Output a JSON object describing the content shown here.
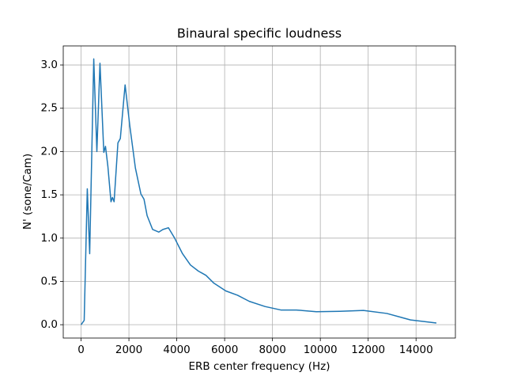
{
  "chart_data": {
    "type": "line",
    "title": "Binaural specific loudness",
    "xlabel": "ERB center frequency (Hz)",
    "ylabel": "N' (sone/Cam)",
    "x": [
      0,
      130,
      260,
      360,
      530,
      660,
      790,
      950,
      1020,
      1120,
      1250,
      1310,
      1380,
      1540,
      1640,
      1840,
      2040,
      2270,
      2500,
      2630,
      2760,
      2990,
      3250,
      3420,
      3650,
      3910,
      4240,
      4570,
      4900,
      5220,
      5550,
      6050,
      6540,
      7030,
      7690,
      8350,
      9000,
      9830,
      10810,
      11800,
      12780,
      13770,
      14850
    ],
    "series": [
      {
        "color": "#1f77b4",
        "values": [
          0,
          0.05,
          1.57,
          0.82,
          3.07,
          2.0,
          3.02,
          1.99,
          2.06,
          1.83,
          1.42,
          1.47,
          1.42,
          2.1,
          2.15,
          2.77,
          2.29,
          1.81,
          1.51,
          1.45,
          1.26,
          1.1,
          1.07,
          1.1,
          1.12,
          1.0,
          0.82,
          0.69,
          0.62,
          0.57,
          0.48,
          0.39,
          0.34,
          0.27,
          0.21,
          0.17,
          0.17,
          0.15,
          0.155,
          0.165,
          0.13,
          0.055,
          0.02
        ]
      }
    ],
    "xlim": [
      -745,
      15645
    ],
    "ylim": [
      -0.154,
      3.22
    ],
    "xticks": [
      0,
      2000,
      4000,
      6000,
      8000,
      10000,
      12000,
      14000
    ],
    "yticks": [
      {
        "value": 0,
        "label": "0.0"
      },
      {
        "value": 0.5,
        "label": "0.5"
      },
      {
        "value": 1,
        "label": "1.0"
      },
      {
        "value": 1.5,
        "label": "1.5"
      },
      {
        "value": 2,
        "label": "2.0"
      },
      {
        "value": 2.5,
        "label": "2.5"
      },
      {
        "value": 3,
        "label": "3.0"
      }
    ],
    "grid": true
  }
}
